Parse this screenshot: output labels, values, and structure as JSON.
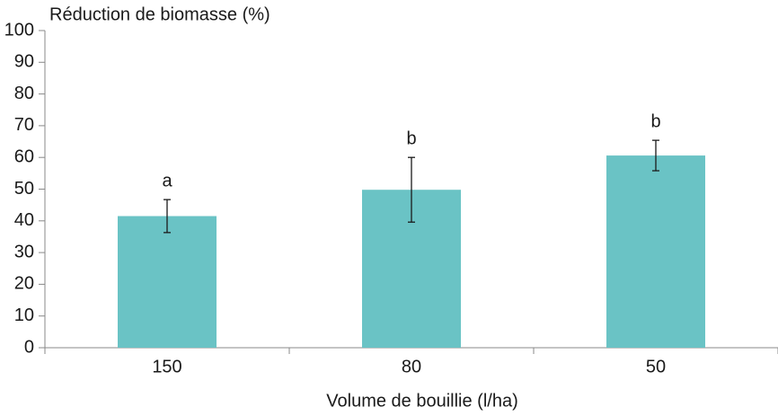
{
  "chart_data": {
    "type": "bar",
    "title": "Réduction de biomasse (%)",
    "x_label": "Volume de bouillie (l/ha)",
    "categories": [
      "150",
      "80",
      "50"
    ],
    "values": [
      41.5,
      49.8,
      60.6
    ],
    "errors": [
      5.2,
      10.2,
      4.8
    ],
    "annotations": [
      "a",
      "b",
      "b"
    ],
    "color": "#6ac3c5",
    "ylim": [
      0,
      100
    ],
    "yticks": [
      0,
      10,
      20,
      30,
      40,
      50,
      60,
      70,
      80,
      90,
      100
    ]
  }
}
